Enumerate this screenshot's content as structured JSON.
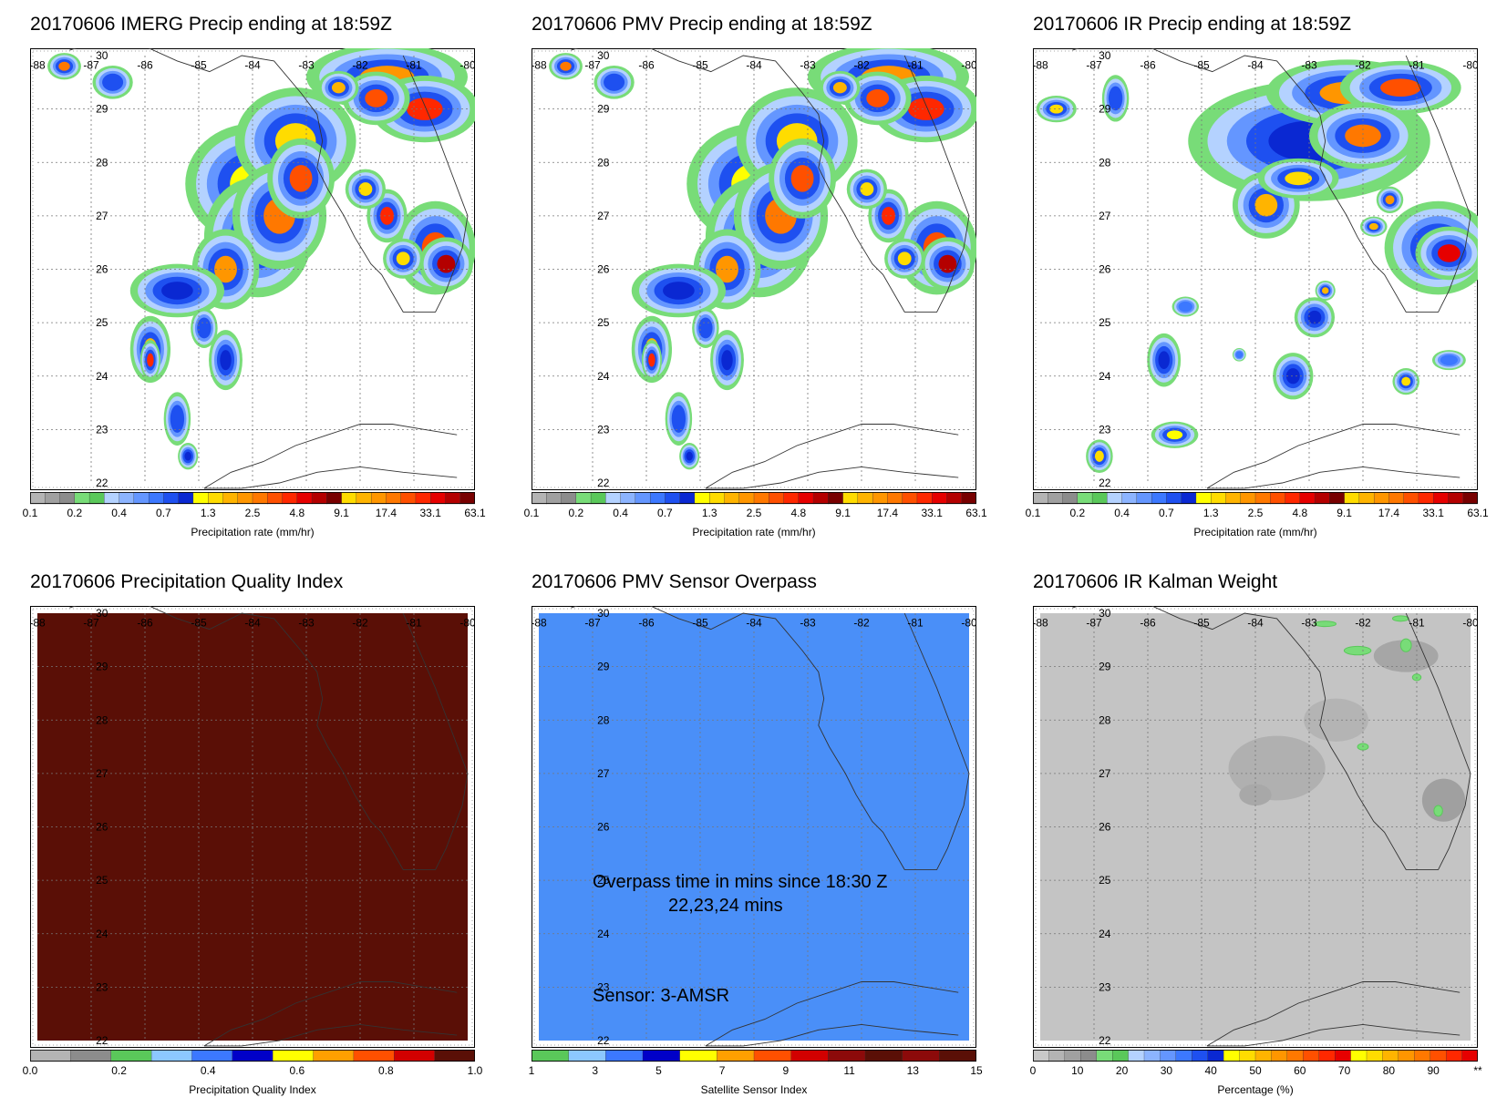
{
  "panels": [
    {
      "id": "imerg",
      "title": "20170606 IMERG Precip ending at 18:59Z",
      "kind": "precip",
      "colorbar_label": "Precipitation rate (mm/hr)",
      "colorbar_ticks": [
        "0.1",
        "0.2",
        "0.4",
        "0.7",
        "1.3",
        "2.5",
        "4.8",
        "9.1",
        "17.4",
        "33.1",
        "63.1"
      ]
    },
    {
      "id": "pmv",
      "title": "20170606 PMV Precip ending at 18:59Z",
      "kind": "precip",
      "colorbar_label": "Precipitation rate (mm/hr)",
      "colorbar_ticks": [
        "0.1",
        "0.2",
        "0.4",
        "0.7",
        "1.3",
        "2.5",
        "4.8",
        "9.1",
        "17.4",
        "33.1",
        "63.1"
      ]
    },
    {
      "id": "ir",
      "title": "20170606 IR Precip ending at 18:59Z",
      "kind": "precip-ir",
      "colorbar_label": "Precipitation rate (mm/hr)",
      "colorbar_ticks": [
        "0.1",
        "0.2",
        "0.4",
        "0.7",
        "1.3",
        "2.5",
        "4.8",
        "9.1",
        "17.4",
        "33.1",
        "63.1"
      ]
    },
    {
      "id": "pqi",
      "title": "20170606 Precipitation Quality Index",
      "kind": "fill",
      "fill_color": "#5a0f06",
      "colorbar_label": "Precipitation Quality Index",
      "colorbar_ticks": [
        "0.0",
        "0.2",
        "0.4",
        "0.6",
        "0.8",
        "1.0"
      ]
    },
    {
      "id": "sensor",
      "title": "20170606 PMV Sensor Overpass",
      "kind": "fill",
      "fill_color": "#4a8ff8",
      "overpass_text": "Overpass time in mins since 18:30 Z",
      "overpass_values": "22,23,24 mins",
      "sensor_text": "Sensor:   3-AMSR",
      "colorbar_label": "Satellite Sensor Index",
      "colorbar_ticks": [
        "1",
        "3",
        "5",
        "7",
        "9",
        "11",
        "13",
        "15"
      ]
    },
    {
      "id": "kalman",
      "title": "20170606 IR Kalman Weight",
      "kind": "gray",
      "colorbar_label": "Percentage (%)",
      "colorbar_ticks": [
        "0",
        "10",
        "20",
        "30",
        "40",
        "50",
        "60",
        "70",
        "80",
        "90",
        "**"
      ]
    }
  ],
  "lon_labels": [
    "-88",
    "-87",
    "-86",
    "-85",
    "-84",
    "-83",
    "-82",
    "-81",
    "-80"
  ],
  "lat_labels": [
    "30",
    "29",
    "28",
    "27",
    "26",
    "25",
    "24",
    "23",
    "22"
  ],
  "colors": {
    "precip": [
      "#b4b4b4",
      "#a0a0a0",
      "#8c8c8c",
      "#78dc78",
      "#5ac85a",
      "#b4d2ff",
      "#8cb4ff",
      "#6496ff",
      "#3c78ff",
      "#1e50f0",
      "#0a28d2",
      "#ffff00",
      "#ffdc00",
      "#ffb400",
      "#ff9600",
      "#ff7800",
      "#ff5000",
      "#ff2800",
      "#e60000",
      "#b40000",
      "#780000"
    ],
    "pqi": [
      "#b4b4b4",
      "#8c8c8c",
      "#5ac85a",
      "#8cc8ff",
      "#3c78ff",
      "#0000c8",
      "#ffff00",
      "#ffa000",
      "#ff5000",
      "#d20000",
      "#5a0f06"
    ],
    "sensor": [
      "#5ac85a",
      "#8cc8ff",
      "#3c78ff",
      "#0000c8",
      "#ffff00",
      "#ffa000",
      "#ff5000",
      "#d20000",
      "#8c0a0a",
      "#5a0f06"
    ],
    "kalman": [
      "#c8c8c8",
      "#b4b4b4",
      "#a0a0a0",
      "#8c8c8c",
      "#78dc78",
      "#5ac85a",
      "#b4d2ff",
      "#8cb4ff",
      "#6496ff",
      "#3c78ff",
      "#1e50f0",
      "#0a28d2",
      "#ffff00",
      "#ffdc00",
      "#ffb400",
      "#ff9600",
      "#ff7800",
      "#ff5000",
      "#ff2800",
      "#e60000"
    ]
  }
}
